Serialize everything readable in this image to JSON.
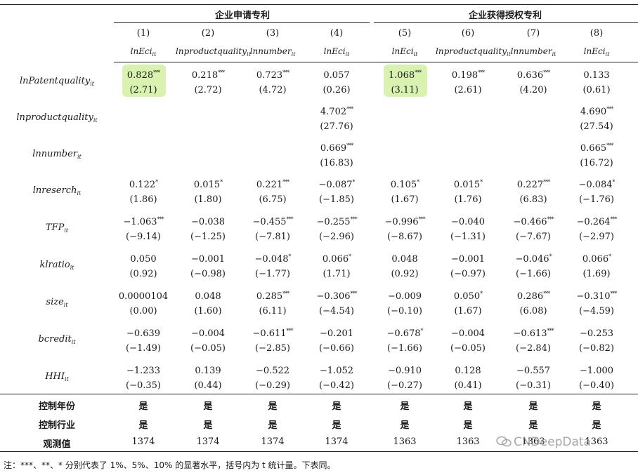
{
  "groups": [
    {
      "label": "企业申请专利"
    },
    {
      "label": "企业获得授权专利"
    }
  ],
  "columns": [
    {
      "num": "(1)",
      "dep": "lnEci"
    },
    {
      "num": "(2)",
      "dep": "lnproductquality"
    },
    {
      "num": "(3)",
      "dep": "lnnumber"
    },
    {
      "num": "(4)",
      "dep": "lnEci"
    },
    {
      "num": "(5)",
      "dep": "lnEci"
    },
    {
      "num": "(6)",
      "dep": "lnproductquality"
    },
    {
      "num": "(7)",
      "dep": "lnnumber"
    },
    {
      "num": "(8)",
      "dep": "lnEci"
    }
  ],
  "dep_subscript": "it",
  "rows": [
    {
      "label": "lnPatentquality",
      "sub": "it",
      "coef": [
        "0.828",
        "0.218",
        "0.723",
        "0.057",
        "1.068",
        "0.198",
        "0.636",
        "0.133"
      ],
      "stars": [
        "***",
        "***",
        "***",
        "",
        "***",
        "***",
        "***",
        ""
      ],
      "t": [
        "(2.71)",
        "(2.72)",
        "(4.72)",
        "(0.26)",
        "(3.11)",
        "(2.61)",
        "(4.20)",
        "(0.61)"
      ]
    },
    {
      "label": "lnproductquality",
      "sub": "it",
      "coef": [
        "",
        "",
        "",
        "4.702",
        "",
        "",
        "",
        "4.690"
      ],
      "stars": [
        "",
        "",
        "",
        "***",
        "",
        "",
        "",
        "***"
      ],
      "t": [
        "",
        "",
        "",
        "(27.76)",
        "",
        "",
        "",
        "(27.54)"
      ]
    },
    {
      "label": "lnnumber",
      "sub": "it",
      "coef": [
        "",
        "",
        "",
        "0.669",
        "",
        "",
        "",
        "0.665"
      ],
      "stars": [
        "",
        "",
        "",
        "***",
        "",
        "",
        "",
        "***"
      ],
      "t": [
        "",
        "",
        "",
        "(16.83)",
        "",
        "",
        "",
        "(16.72)"
      ]
    },
    {
      "label": "lnreserch",
      "sub": "it",
      "coef": [
        "0.122",
        "0.015",
        "0.221",
        "−0.087",
        "0.105",
        "0.015",
        "0.227",
        "−0.084"
      ],
      "stars": [
        "*",
        "*",
        "***",
        "*",
        "*",
        "*",
        "***",
        "*"
      ],
      "t": [
        "(1.86)",
        "(1.80)",
        "(6.75)",
        "(−1.85)",
        "(1.67)",
        "(1.76)",
        "(6.83)",
        "(−1.76)"
      ]
    },
    {
      "label": "TFP",
      "sub": "it",
      "coef": [
        "−1.063",
        "−0.038",
        "−0.455",
        "−0.255",
        "−0.996",
        "−0.040",
        "−0.466",
        "−0.264"
      ],
      "stars": [
        "***",
        "",
        "***",
        "***",
        "***",
        "",
        "***",
        "***"
      ],
      "t": [
        "(−9.14)",
        "(−1.25)",
        "(−7.81)",
        "(−2.96)",
        "(−8.67)",
        "(−1.31)",
        "(−7.67)",
        "(−2.97)"
      ]
    },
    {
      "label": "klratio",
      "sub": "it",
      "coef": [
        "0.050",
        "−0.001",
        "−0.048",
        "0.066",
        "0.048",
        "−0.001",
        "−0.046",
        "0.066"
      ],
      "stars": [
        "",
        "",
        "*",
        "*",
        "",
        "",
        "*",
        "*"
      ],
      "t": [
        "(0.92)",
        "(−0.98)",
        "(−1.77)",
        "(1.71)",
        "(0.92)",
        "(−0.97)",
        "(−1.66)",
        "(1.69)"
      ]
    },
    {
      "label": "size",
      "sub": "it",
      "coef": [
        "0.0000104",
        "0.048",
        "0.285",
        "−0.306",
        "−0.009",
        "0.050",
        "0.286",
        "−0.310"
      ],
      "stars": [
        "",
        "",
        "***",
        "***",
        "",
        "*",
        "***",
        "***"
      ],
      "t": [
        "(0.00)",
        "(1.60)",
        "(6.11)",
        "(−4.54)",
        "(−0.10)",
        "(1.67)",
        "(6.08)",
        "(−4.59)"
      ]
    },
    {
      "label": "bcredit",
      "sub": "it",
      "coef": [
        "−0.639",
        "−0.004",
        "−0.611",
        "−0.201",
        "−0.678",
        "−0.004",
        "−0.613",
        "−0.253"
      ],
      "stars": [
        "",
        "",
        "***",
        "",
        "*",
        "",
        "***",
        ""
      ],
      "t": [
        "(−1.49)",
        "(−0.05)",
        "(−2.85)",
        "(−0.66)",
        "(−1.66)",
        "(−0.05)",
        "(−2.84)",
        "(−0.82)"
      ]
    },
    {
      "label": "HHI",
      "sub": "it",
      "coef": [
        "−1.233",
        "0.139",
        "−0.522",
        "−1.052",
        "−0.910",
        "0.128",
        "−0.557",
        "−1.000"
      ],
      "stars": [
        "",
        "",
        "",
        "",
        "",
        "",
        "",
        ""
      ],
      "t": [
        "(−0.35)",
        "(0.44)",
        "(−0.29)",
        "(−0.42)",
        "(−0.27)",
        "(0.41)",
        "(−0.31)",
        "(−0.40)"
      ]
    }
  ],
  "footer_rows": [
    {
      "label": "控制年份",
      "values": [
        "是",
        "是",
        "是",
        "是",
        "是",
        "是",
        "是",
        "是"
      ]
    },
    {
      "label": "控制行业",
      "values": [
        "是",
        "是",
        "是",
        "是",
        "是",
        "是",
        "是",
        "是"
      ]
    },
    {
      "label": "观测值",
      "values": [
        "1374",
        "1374",
        "1374",
        "1374",
        "1363",
        "1363",
        "1363",
        "1363"
      ]
    }
  ],
  "note": "注：***、**、* 分别代表了 1%、5%、10% 的显著水平，括号内为 t 统计量。下表同。",
  "watermark": "CNDeepData",
  "highlight_color": "#d9f2b0"
}
